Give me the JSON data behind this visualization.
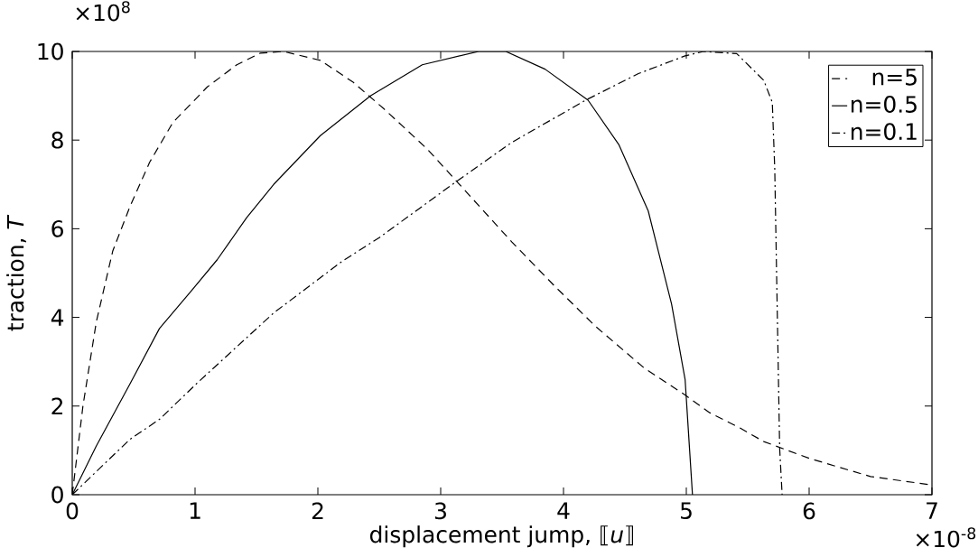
{
  "chart_data": {
    "type": "line",
    "xlabel": "displacement jump, ⟦*u*⟧",
    "ylabel": "traction, *T*",
    "annotations": [
      "×10$^{8}$",
      "×10$^{-8}$"
    ],
    "xlim": [
      0,
      7
    ],
    "ylim": [
      0,
      10
    ],
    "xticks": [
      0,
      1,
      2,
      3,
      4,
      5,
      6,
      7
    ],
    "yticks": [
      0,
      2,
      4,
      6,
      8,
      10
    ],
    "legend": "top right",
    "marker": "none",
    "grid": false,
    "series": [
      {
        "name": "n=5",
        "color": "#000000",
        "line_style": "dashed",
        "x": [
          0,
          0.087,
          0.196,
          0.33,
          0.47,
          0.63,
          0.82,
          1.1,
          1.34,
          1.53,
          1.72,
          2.02,
          2.29,
          2.54,
          2.89,
          3.12,
          3.58,
          3.93,
          4.26,
          4.66,
          4.99,
          5.19,
          5.44,
          5.63,
          6,
          6.5,
          7
        ],
        "values": [
          0,
          2.0,
          3.9,
          5.5,
          6.5,
          7.5,
          8.4,
          9.2,
          9.7,
          9.96,
          10,
          9.8,
          9.3,
          8.7,
          7.8,
          7.1,
          5.7,
          4.7,
          3.8,
          2.85,
          2.25,
          1.85,
          1.5,
          1.2,
          0.82,
          0.41,
          0.22
        ]
      },
      {
        "name": "n=0.5",
        "color": "#000000",
        "line_style": "solid",
        "x": [
          0,
          0.196,
          0.47,
          0.71,
          0.97,
          1.18,
          1.42,
          1.64,
          2.02,
          2.43,
          2.85,
          3.31,
          3.53,
          3.85,
          4.2,
          4.45,
          4.69,
          4.88,
          4.99,
          5.05
        ],
        "values": [
          0,
          1.1,
          2.5,
          3.75,
          4.6,
          5.3,
          6.25,
          7.0,
          8.1,
          9.0,
          9.7,
          10,
          10,
          9.6,
          8.9,
          7.9,
          6.4,
          4.3,
          2.6,
          0
        ]
      },
      {
        "name": "n=0.1",
        "color": "#000000",
        "line_style": "dashdot",
        "x": [
          0,
          0.47,
          0.71,
          1.01,
          1.64,
          2.19,
          2.5,
          3.12,
          3.58,
          4.18,
          4.61,
          4.99,
          5.14,
          5.41,
          5.63,
          5.7,
          5.72,
          5.76,
          5.78
        ],
        "values": [
          0,
          1.25,
          1.7,
          2.5,
          4.1,
          5.25,
          5.8,
          7.05,
          7.95,
          8.9,
          9.5,
          9.9,
          10,
          9.95,
          9.35,
          8.85,
          7.35,
          1.05,
          0
        ]
      }
    ]
  }
}
